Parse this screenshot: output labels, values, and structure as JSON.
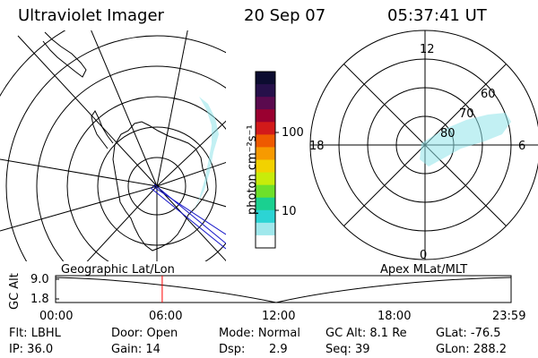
{
  "header": {
    "title": "Ultraviolet Imager",
    "date": "20 Sep 07",
    "time": "05:37:41 UT"
  },
  "geo_panel": {
    "label": "Geographic Lat/Lon"
  },
  "mag_panel": {
    "label": "Apex MLat/MLT",
    "mlt_labels": [
      "12",
      "18",
      "6",
      "0"
    ],
    "mlat_labels": [
      "60",
      "70",
      "80"
    ]
  },
  "colorbar": {
    "unit_label": "photon cm⁻²s⁻¹",
    "ticks": [
      "100",
      "10"
    ],
    "colors": [
      "#0c0c30",
      "#26104a",
      "#5a0a4e",
      "#9a0030",
      "#d21a1a",
      "#ee5a00",
      "#f79a00",
      "#f2d200",
      "#c8ec0a",
      "#6ee02a",
      "#1ad090",
      "#2cd4d4",
      "#a0e8ec",
      "#ffffff"
    ]
  },
  "altitude_plot": {
    "y_axis_label": "GC Alt",
    "y_ticks": [
      "9.0",
      "1.8"
    ],
    "x_ticks": [
      "00:00",
      "06:00",
      "12:00",
      "18:00",
      "23:59"
    ],
    "current_time_fraction": 0.234
  },
  "info": {
    "filter": "Flt: LBHL",
    "ip": "IP: 36.0",
    "door": "Door: Open",
    "gain": "Gain: 14",
    "mode": "Mode: Normal",
    "dsp": "Dsp:",
    "dsp_value": "2.9",
    "gc_alt": "GC Alt: 8.1 Re",
    "seq": "Seq: 39",
    "glat": "GLat: -76.5",
    "glon": "GLon: 288.2"
  },
  "colors": {
    "aurora": "#8fe3ea",
    "marker": "#ff0000",
    "track": "#0000cc"
  }
}
